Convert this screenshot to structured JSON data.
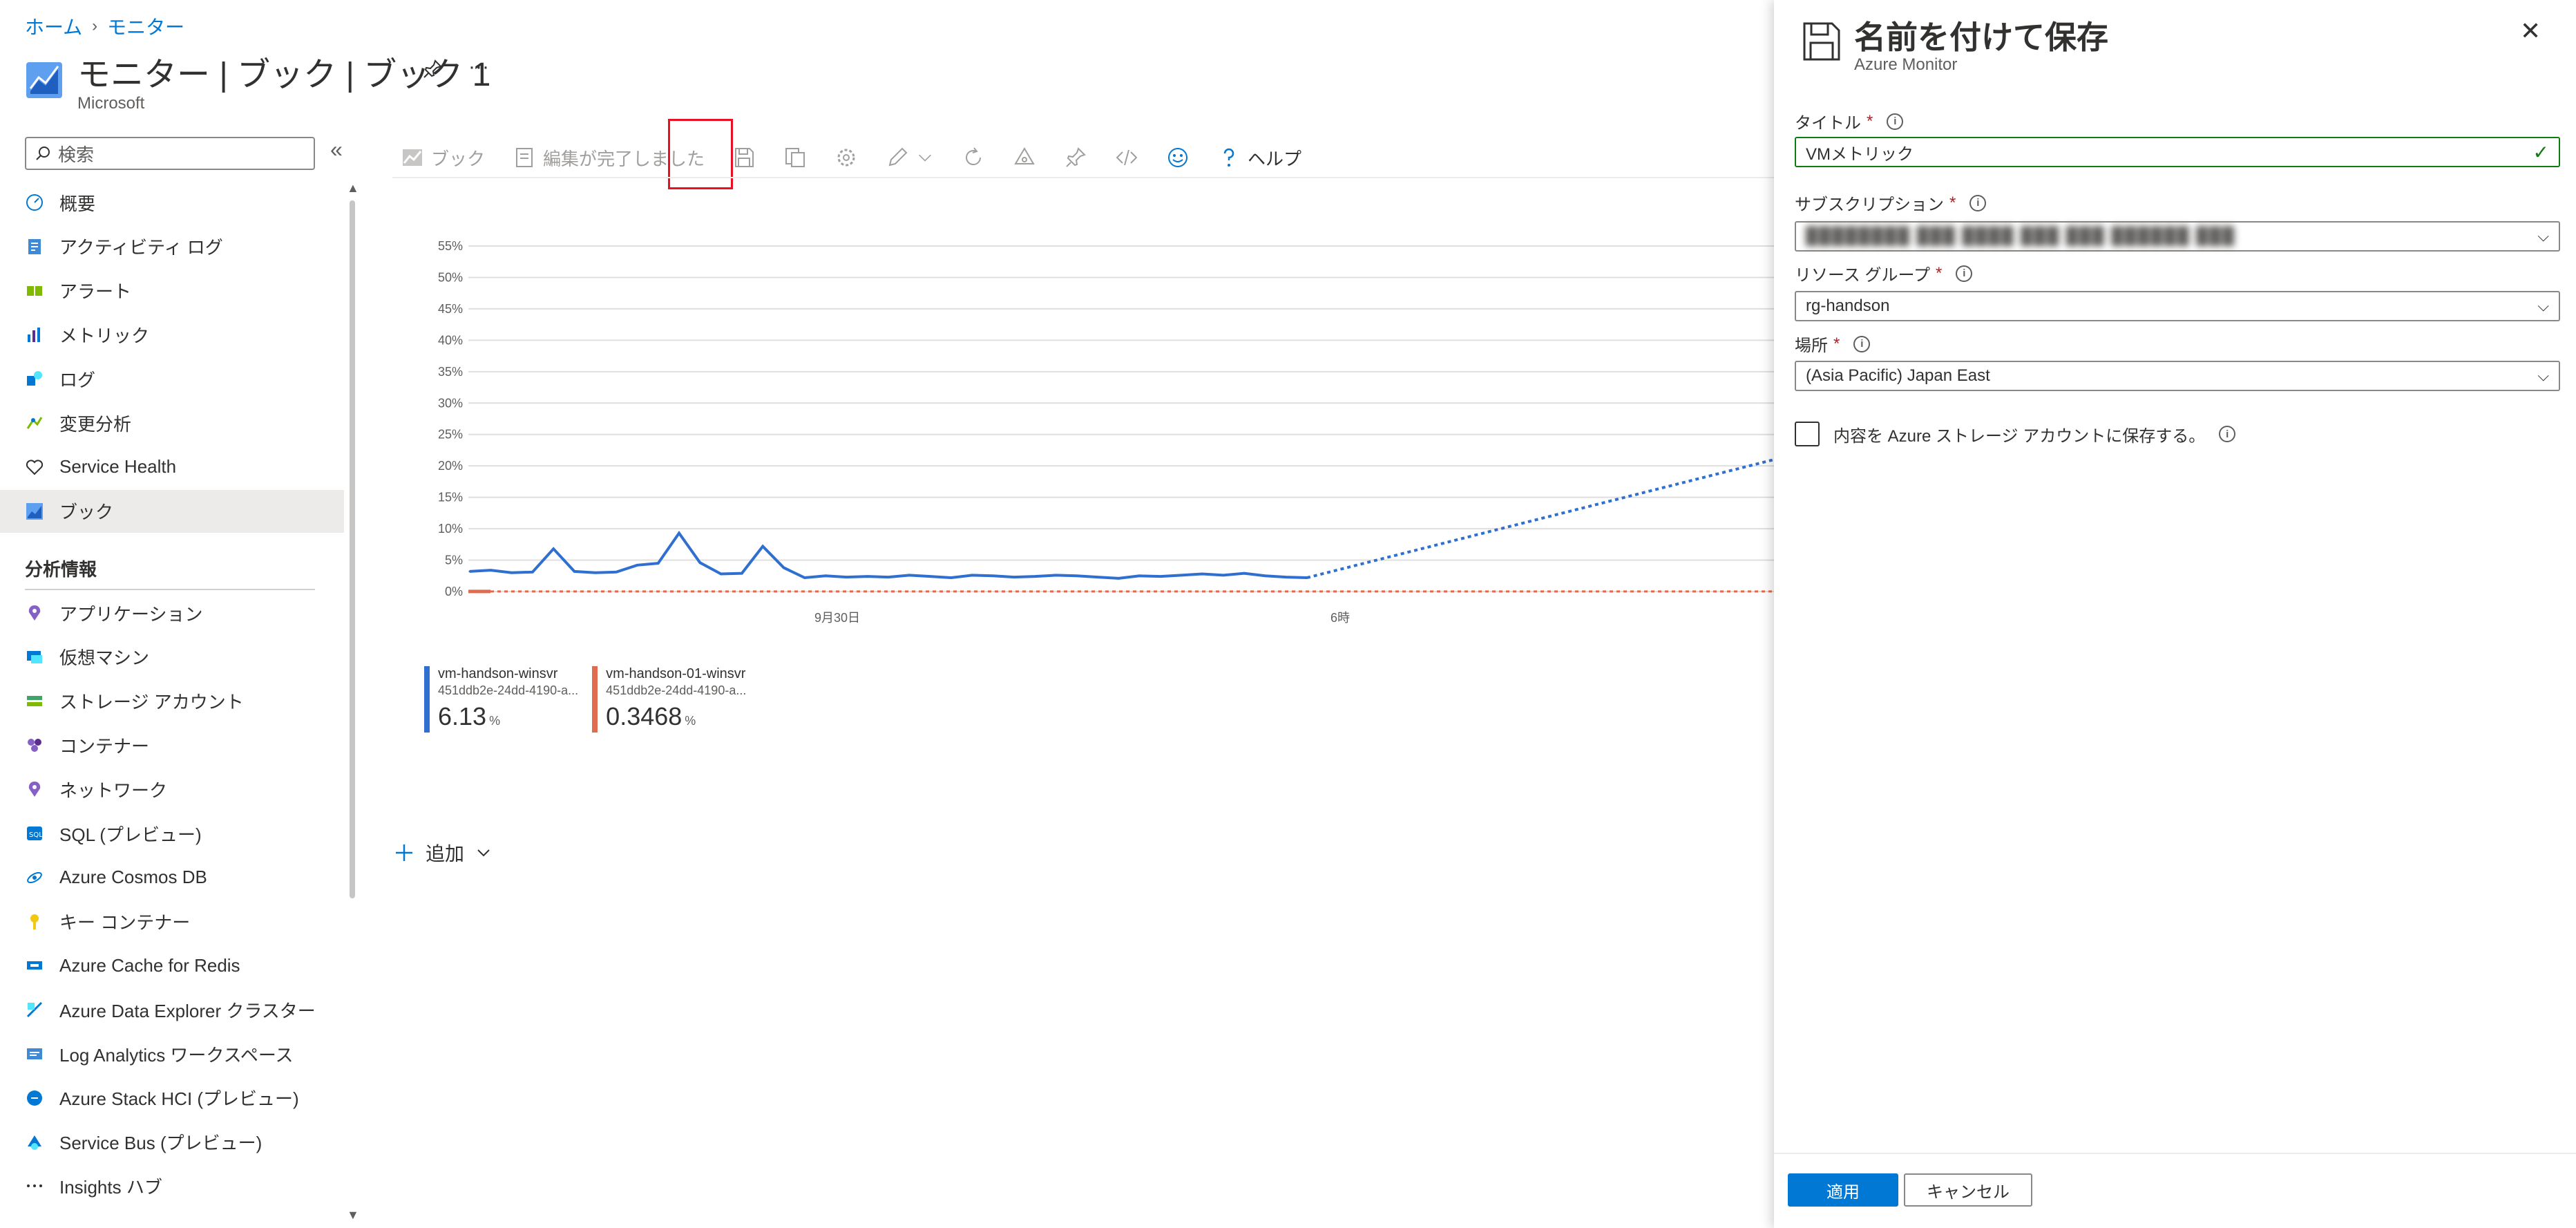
{
  "breadcrumb": {
    "home": "ホーム",
    "current": "モニター"
  },
  "page": {
    "title": "モニター | ブック | ブック 1",
    "subtitle": "Microsoft"
  },
  "sidebar": {
    "search_placeholder": "検索",
    "items": [
      {
        "label": "概要",
        "icon": "overview-icon"
      },
      {
        "label": "アクティビティ ログ",
        "icon": "activity-log-icon"
      },
      {
        "label": "アラート",
        "icon": "alert-icon"
      },
      {
        "label": "メトリック",
        "icon": "metrics-icon"
      },
      {
        "label": "ログ",
        "icon": "logs-icon"
      },
      {
        "label": "変更分析",
        "icon": "change-analysis-icon"
      },
      {
        "label": "Service Health",
        "icon": "service-health-icon"
      },
      {
        "label": "ブック",
        "icon": "workbook-icon",
        "selected": true
      }
    ],
    "section_title": "分析情報",
    "insights": [
      {
        "label": "アプリケーション",
        "icon": "application-icon"
      },
      {
        "label": "仮想マシン",
        "icon": "vm-icon"
      },
      {
        "label": "ストレージ アカウント",
        "icon": "storage-icon"
      },
      {
        "label": "コンテナー",
        "icon": "container-icon"
      },
      {
        "label": "ネットワーク",
        "icon": "network-icon"
      },
      {
        "label": "SQL (プレビュー)",
        "icon": "sql-icon"
      },
      {
        "label": "Azure Cosmos DB",
        "icon": "cosmos-icon"
      },
      {
        "label": "キー コンテナー",
        "icon": "key-vault-icon"
      },
      {
        "label": "Azure Cache for Redis",
        "icon": "redis-icon"
      },
      {
        "label": "Azure Data Explorer クラスター",
        "icon": "data-explorer-icon"
      },
      {
        "label": "Log Analytics ワークスペース",
        "icon": "log-analytics-icon"
      },
      {
        "label": "Azure Stack HCI (プレビュー)",
        "icon": "stack-hci-icon"
      },
      {
        "label": "Service Bus (プレビュー)",
        "icon": "service-bus-icon"
      },
      {
        "label": "Insights ハブ",
        "icon": "more-icon"
      }
    ]
  },
  "toolbar": {
    "book_label": "ブック",
    "done_label": "編集が完了しました",
    "help_label": "ヘルプ"
  },
  "chart_data": {
    "type": "line",
    "y_ticks": [
      "55%",
      "50%",
      "45%",
      "40%",
      "35%",
      "30%",
      "25%",
      "20%",
      "15%",
      "10%",
      "5%",
      "0%"
    ],
    "ylim": [
      0,
      55
    ],
    "x_ticks": [
      "9月30日",
      "6時"
    ],
    "series": [
      {
        "name": "vm-handson-winsvr",
        "id": "451ddb2e-24dd-4190-a...",
        "value": "6.13",
        "unit": "%",
        "color": "#2f6fd0",
        "values": [
          3.2,
          3.4,
          3.0,
          3.1,
          6.8,
          3.2,
          3.0,
          3.1,
          4.2,
          4.5,
          9.3,
          4.6,
          2.8,
          2.9,
          7.2,
          3.8,
          2.2,
          2.5,
          2.3,
          2.4,
          2.3,
          2.6,
          2.4,
          2.2,
          2.6,
          2.5,
          2.3,
          2.4,
          2.6,
          2.5,
          2.3,
          2.1,
          2.5,
          2.4,
          2.6,
          2.8,
          2.6,
          2.9,
          2.5,
          2.3,
          2.2
        ],
        "trend_end": 21
      },
      {
        "name": "vm-handson-01-winsvr",
        "id": "451ddb2e-24dd-4190-a...",
        "value": "0.3468",
        "unit": "%",
        "color": "#e06b4e",
        "values": [
          0.35
        ]
      }
    ]
  },
  "add_label": "追加",
  "panel": {
    "title": "名前を付けて保存",
    "subtitle": "Azure Monitor",
    "title_label": "タイトル",
    "title_value": "VMメトリック",
    "subscription_label": "サブスクリプション",
    "subscription_value": "████████ ███ ████ ███ ███ ██████ ███",
    "rg_label": "リソース グループ",
    "rg_value": "rg-handson",
    "location_label": "場所",
    "location_value": "(Asia Pacific) Japan East",
    "storage_checkbox_label": "内容を Azure ストレージ アカウントに保存する。",
    "apply_label": "適用",
    "cancel_label": "キャンセル"
  }
}
